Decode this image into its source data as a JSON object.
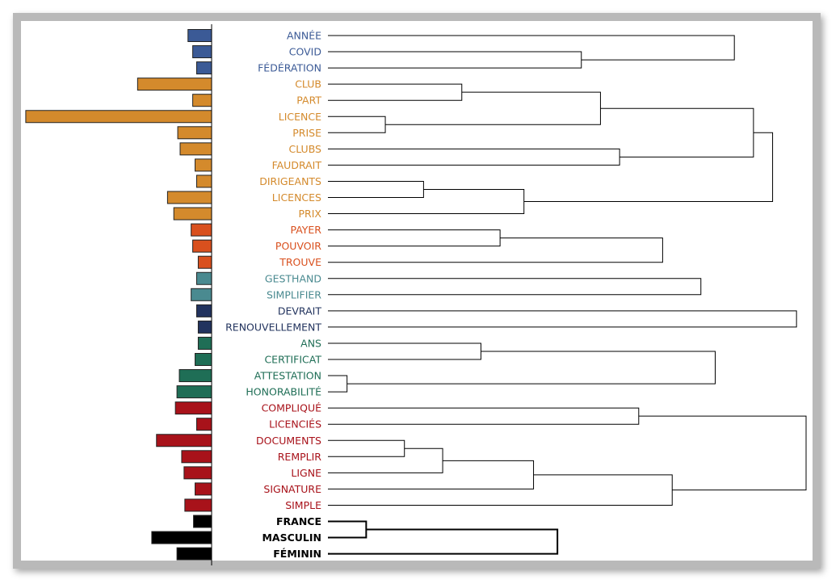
{
  "chart_data": {
    "type": "dendrogram",
    "title": "",
    "bar_axis_max": 240,
    "cluster_colors": {
      "c1": "#3b5a96",
      "c2": "#d48a2c",
      "c3": "#d9501e",
      "c4": "#4a8a90",
      "c5": "#22335e",
      "c6": "#1f6e56",
      "c7": "#a8121a",
      "c8": "#000000"
    },
    "terms": [
      {
        "label": "ANNÉE",
        "cluster": "c1",
        "value": 30,
        "bold": false
      },
      {
        "label": "COVID",
        "cluster": "c1",
        "value": 24,
        "bold": false
      },
      {
        "label": "FÉDÉRATION",
        "cluster": "c1",
        "value": 19,
        "bold": false
      },
      {
        "label": "CLUB",
        "cluster": "c2",
        "value": 94,
        "bold": false
      },
      {
        "label": "PART",
        "cluster": "c2",
        "value": 24,
        "bold": false
      },
      {
        "label": "LICENCE",
        "cluster": "c2",
        "value": 236,
        "bold": false
      },
      {
        "label": "PRISE",
        "cluster": "c2",
        "value": 43,
        "bold": false
      },
      {
        "label": "CLUBS",
        "cluster": "c2",
        "value": 40,
        "bold": false
      },
      {
        "label": "FAUDRAIT",
        "cluster": "c2",
        "value": 21,
        "bold": false
      },
      {
        "label": "DIRIGEANTS",
        "cluster": "c2",
        "value": 19,
        "bold": false
      },
      {
        "label": "LICENCES",
        "cluster": "c2",
        "value": 56,
        "bold": false
      },
      {
        "label": "PRIX",
        "cluster": "c2",
        "value": 48,
        "bold": false
      },
      {
        "label": "PAYER",
        "cluster": "c3",
        "value": 26,
        "bold": false
      },
      {
        "label": "POUVOIR",
        "cluster": "c3",
        "value": 24,
        "bold": false
      },
      {
        "label": "TROUVE",
        "cluster": "c3",
        "value": 17,
        "bold": false
      },
      {
        "label": "GESTHAND",
        "cluster": "c4",
        "value": 19,
        "bold": false
      },
      {
        "label": "SIMPLIFIER",
        "cluster": "c4",
        "value": 26,
        "bold": false
      },
      {
        "label": "DEVRAIT",
        "cluster": "c5",
        "value": 19,
        "bold": false
      },
      {
        "label": "RENOUVELLEMENT",
        "cluster": "c5",
        "value": 17,
        "bold": false
      },
      {
        "label": "ANS",
        "cluster": "c6",
        "value": 17,
        "bold": false
      },
      {
        "label": "CERTIFICAT",
        "cluster": "c6",
        "value": 21,
        "bold": false
      },
      {
        "label": "ATTESTATION",
        "cluster": "c6",
        "value": 41,
        "bold": false
      },
      {
        "label": "HONORABILITÉ",
        "cluster": "c6",
        "value": 44,
        "bold": false
      },
      {
        "label": "COMPLIQUÉ",
        "cluster": "c7",
        "value": 46,
        "bold": false
      },
      {
        "label": "LICENCIÉS",
        "cluster": "c7",
        "value": 19,
        "bold": false
      },
      {
        "label": "DOCUMENTS",
        "cluster": "c7",
        "value": 70,
        "bold": false
      },
      {
        "label": "REMPLIR",
        "cluster": "c7",
        "value": 38,
        "bold": false
      },
      {
        "label": "LIGNE",
        "cluster": "c7",
        "value": 35,
        "bold": false
      },
      {
        "label": "SIGNATURE",
        "cluster": "c7",
        "value": 21,
        "bold": false
      },
      {
        "label": "SIMPLE",
        "cluster": "c7",
        "value": 34,
        "bold": false
      },
      {
        "label": "FRANCE",
        "cluster": "c8",
        "value": 23,
        "bold": true
      },
      {
        "label": "MASCULIN",
        "cluster": "c8",
        "value": 76,
        "bold": true
      },
      {
        "label": "FÉMININ",
        "cluster": "c8",
        "value": 44,
        "bold": true
      }
    ],
    "dendrogram_max_height": 100,
    "merges": [
      {
        "a": "COVID",
        "b": "FÉDÉRATION",
        "h": 53
      },
      {
        "a": "ANNÉE",
        "b": "m0",
        "h": 85
      },
      {
        "a": "CLUB",
        "b": "PART",
        "h": 28
      },
      {
        "a": "LICENCE",
        "b": "PRISE",
        "h": 12
      },
      {
        "a": "m2",
        "b": "m3",
        "h": 57
      },
      {
        "a": "CLUBS",
        "b": "FAUDRAIT",
        "h": 61
      },
      {
        "a": "m4",
        "b": "m5",
        "h": 89
      },
      {
        "a": "DIRIGEANTS",
        "b": "LICENCES",
        "h": 20
      },
      {
        "a": "m7",
        "b": "PRIX",
        "h": 41
      },
      {
        "a": "m6",
        "b": "m8",
        "h": 93
      },
      {
        "a": "PAYER",
        "b": "POUVOIR",
        "h": 36
      },
      {
        "a": "m10",
        "b": "TROUVE",
        "h": 70
      },
      {
        "a": "GESTHAND",
        "b": "SIMPLIFIER",
        "h": 78
      },
      {
        "a": "DEVRAIT",
        "b": "RENOUVELLEMENT",
        "h": 98
      },
      {
        "a": "ANS",
        "b": "CERTIFICAT",
        "h": 32
      },
      {
        "a": "ATTESTATION",
        "b": "HONORABILITÉ",
        "h": 4
      },
      {
        "a": "m14",
        "b": "m15",
        "h": 81
      },
      {
        "a": "DOCUMENTS",
        "b": "REMPLIR",
        "h": 16
      },
      {
        "a": "m17",
        "b": "LIGNE",
        "h": 24
      },
      {
        "a": "m18",
        "b": "SIGNATURE",
        "h": 43
      },
      {
        "a": "m19",
        "b": "SIMPLE",
        "h": 72
      },
      {
        "a": "COMPLIQUÉ",
        "b": "LICENCIÉS",
        "h": 65
      },
      {
        "a": "m21",
        "b": "m20",
        "h": 100
      },
      {
        "a": "FRANCE",
        "b": "MASCULIN",
        "h": 8
      },
      {
        "a": "m23",
        "b": "FÉMININ",
        "h": 48
      }
    ]
  }
}
